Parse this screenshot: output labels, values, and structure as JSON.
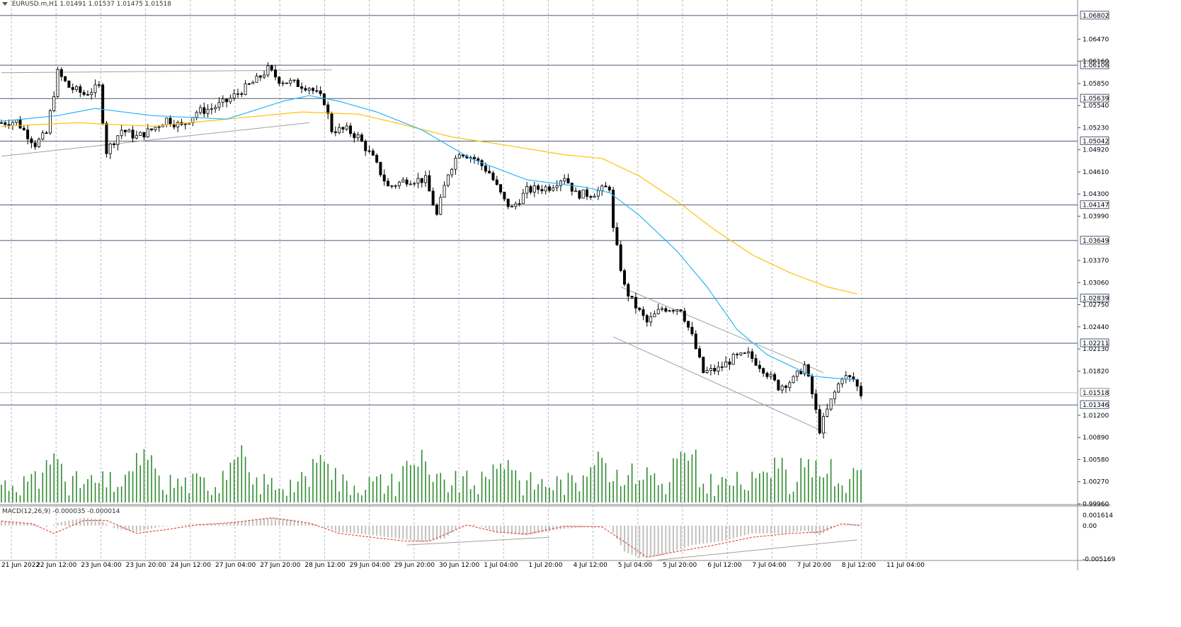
{
  "header": {
    "symbol": "EURUSD.m,H1",
    "open": "1.01491",
    "high": "1.01537",
    "low": "1.01475",
    "close": "1.01518"
  },
  "macd_header": {
    "name": "MACD(12,26,9)",
    "values": "-0.000035 -0.000014"
  },
  "colors": {
    "bull_candle": "#ffffff",
    "bear_candle": "#000000",
    "level_line": "#4a5a78",
    "grid": "#b8b8b8",
    "ma_fast": "#29b6f6",
    "ma_slow": "#ffc107",
    "volume": "#2e8b2e",
    "macd_hist": "#c0c0c0",
    "macd_signal": "#e53935",
    "trendline": "#a0a0a0"
  },
  "chart_data": {
    "type": "candlestick",
    "symbol": "EURUSD.m",
    "timeframe": "H1",
    "price_axis": {
      "ylim": [
        0.9996,
        1.069
      ],
      "tick_labels": [
        "1.06470",
        "1.06160",
        "1.05850",
        "1.05540",
        "1.05230",
        "1.04920",
        "1.04610",
        "1.04300",
        "1.03990",
        "1.03370",
        "1.03060",
        "1.02750",
        "1.02440",
        "1.02130",
        "1.01820",
        "1.01200",
        "1.00890",
        "1.00580",
        "1.00270",
        "0.99960"
      ],
      "levels": [
        {
          "label": "1.06802",
          "value": 1.06802
        },
        {
          "label": "1.06106",
          "value": 1.06106
        },
        {
          "label": "1.05639",
          "value": 1.05639
        },
        {
          "label": "1.05042",
          "value": 1.05042
        },
        {
          "label": "1.04147",
          "value": 1.04147
        },
        {
          "label": "1.03649",
          "value": 1.03649
        },
        {
          "label": "1.02839",
          "value": 1.02839
        },
        {
          "label": "1.02211",
          "value": 1.02211
        },
        {
          "label": "1.01346",
          "value": 1.01346
        }
      ],
      "bid": {
        "label": "1.01518",
        "value": 1.01518
      }
    },
    "time_labels": [
      "21 Jun 2022",
      "22 Jun 12:00",
      "23 Jun 04:00",
      "23 Jun 20:00",
      "24 Jun 12:00",
      "27 Jun 04:00",
      "27 Jun 20:00",
      "28 Jun 12:00",
      "29 Jun 04:00",
      "29 Jun 20:00",
      "30 Jun 12:00",
      "1 Jul 04:00",
      "1 Jul 20:00",
      "4 Jul 12:00",
      "5 Jul 04:00",
      "5 Jul 20:00",
      "6 Jul 12:00",
      "7 Jul 04:00",
      "7 Jul 20:00",
      "8 Jul 12:00",
      "11 Jul 04:00"
    ],
    "bars": 230,
    "close_path": [
      [
        0,
        1.053
      ],
      [
        4,
        1.0532
      ],
      [
        9,
        1.05
      ],
      [
        12,
        1.0515
      ],
      [
        15,
        1.06
      ],
      [
        18,
        1.058
      ],
      [
        22,
        1.057
      ],
      [
        26,
        1.058
      ],
      [
        28,
        1.049
      ],
      [
        32,
        1.052
      ],
      [
        36,
        1.051
      ],
      [
        40,
        1.052
      ],
      [
        44,
        1.0535
      ],
      [
        48,
        1.0525
      ],
      [
        52,
        1.0545
      ],
      [
        56,
        1.055
      ],
      [
        60,
        1.056
      ],
      [
        64,
        1.0575
      ],
      [
        68,
        1.059
      ],
      [
        71,
        1.0605
      ],
      [
        74,
        1.059
      ],
      [
        78,
        1.0585
      ],
      [
        82,
        1.058
      ],
      [
        86,
        1.056
      ],
      [
        88,
        1.052
      ],
      [
        92,
        1.052
      ],
      [
        95,
        1.051
      ],
      [
        99,
        1.048
      ],
      [
        103,
        1.044
      ],
      [
        108,
        1.045
      ],
      [
        113,
        1.045
      ],
      [
        116,
        1.04
      ],
      [
        119,
        1.046
      ],
      [
        122,
        1.049
      ],
      [
        126,
        1.048
      ],
      [
        130,
        1.046
      ],
      [
        134,
        1.042
      ],
      [
        136,
        1.041
      ],
      [
        140,
        1.0435
      ],
      [
        146,
        1.044
      ],
      [
        150,
        1.0455
      ],
      [
        153,
        1.043
      ],
      [
        157,
        1.043
      ],
      [
        162,
        1.044
      ],
      [
        163,
        1.038
      ],
      [
        166,
        1.03
      ],
      [
        168,
        1.028
      ],
      [
        172,
        1.025
      ],
      [
        176,
        1.027
      ],
      [
        181,
        1.027
      ],
      [
        184,
        1.023
      ],
      [
        187,
        1.018
      ],
      [
        191,
        1.0185
      ],
      [
        195,
        1.02
      ],
      [
        199,
        1.0205
      ],
      [
        203,
        1.0185
      ],
      [
        207,
        1.016
      ],
      [
        211,
        1.017
      ],
      [
        214,
        1.019
      ],
      [
        216,
        1.015
      ],
      [
        218,
        1.01
      ],
      [
        221,
        1.014
      ],
      [
        224,
        1.0175
      ],
      [
        227,
        1.017
      ],
      [
        229,
        1.015
      ]
    ],
    "ma_fast": [
      [
        0,
        1.0532
      ],
      [
        15,
        1.054
      ],
      [
        25,
        1.055
      ],
      [
        40,
        1.054
      ],
      [
        60,
        1.0535
      ],
      [
        75,
        1.056
      ],
      [
        82,
        1.0568
      ],
      [
        90,
        1.056
      ],
      [
        100,
        1.0545
      ],
      [
        112,
        1.052
      ],
      [
        125,
        1.048
      ],
      [
        140,
        1.045
      ],
      [
        155,
        1.044
      ],
      [
        162,
        1.0432
      ],
      [
        170,
        1.04
      ],
      [
        180,
        1.035
      ],
      [
        188,
        1.03
      ],
      [
        196,
        1.024
      ],
      [
        204,
        1.0205
      ],
      [
        210,
        1.019
      ],
      [
        216,
        1.0175
      ],
      [
        222,
        1.0172
      ],
      [
        228,
        1.017
      ]
    ],
    "ma_slow": [
      [
        0,
        1.0525
      ],
      [
        20,
        1.053
      ],
      [
        40,
        1.0525
      ],
      [
        60,
        1.0535
      ],
      [
        80,
        1.0545
      ],
      [
        95,
        1.0542
      ],
      [
        105,
        1.053
      ],
      [
        120,
        1.051
      ],
      [
        135,
        1.0498
      ],
      [
        150,
        1.0485
      ],
      [
        160,
        1.048
      ],
      [
        170,
        1.0455
      ],
      [
        180,
        1.042
      ],
      [
        190,
        1.038
      ],
      [
        200,
        1.0345
      ],
      [
        210,
        1.032
      ],
      [
        220,
        1.03
      ],
      [
        228,
        1.029
      ]
    ],
    "trendlines": [
      {
        "from": [
          0,
          1.0483
        ],
        "to": [
          82,
          1.053
        ]
      },
      {
        "from": [
          0,
          1.06
        ],
        "to": [
          88,
          1.0604
        ]
      },
      {
        "from": [
          165,
          1.03
        ],
        "to": [
          219,
          1.018
        ]
      },
      {
        "from": [
          163,
          1.023
        ],
        "to": [
          220,
          1.0095
        ]
      }
    ],
    "volume": {
      "ylim": [
        0,
        100
      ]
    },
    "macd": {
      "title": "MACD(12,26,9)",
      "ylim": [
        -0.005169,
        0.001614
      ],
      "tick_labels": [
        "0.001614",
        "0.00",
        "-0.005169"
      ],
      "hist_path": [
        [
          0,
          0.0007
        ],
        [
          8,
          0.0004
        ],
        [
          12,
          -0.0002
        ],
        [
          16,
          0.0006
        ],
        [
          22,
          0.0012
        ],
        [
          26,
          0.001
        ],
        [
          30,
          -0.0004
        ],
        [
          36,
          -0.001
        ],
        [
          42,
          -0.0002
        ],
        [
          50,
          0.0002
        ],
        [
          60,
          0.0004
        ],
        [
          66,
          0.0009
        ],
        [
          72,
          0.0012
        ],
        [
          78,
          0.0009
        ],
        [
          84,
          0.0002
        ],
        [
          90,
          -0.001
        ],
        [
          98,
          -0.0014
        ],
        [
          106,
          -0.002
        ],
        [
          112,
          -0.0025
        ],
        [
          118,
          -0.002
        ],
        [
          122,
          -0.0002
        ],
        [
          126,
          0.0002
        ],
        [
          132,
          -0.001
        ],
        [
          140,
          -0.0015
        ],
        [
          148,
          -0.0006
        ],
        [
          156,
          -0.0002
        ],
        [
          162,
          -0.0001
        ],
        [
          166,
          -0.004
        ],
        [
          170,
          -0.005
        ],
        [
          176,
          -0.0046
        ],
        [
          184,
          -0.003
        ],
        [
          192,
          -0.0024
        ],
        [
          200,
          -0.0012
        ],
        [
          208,
          -0.0012
        ],
        [
          214,
          -0.0008
        ],
        [
          218,
          -0.0015
        ],
        [
          222,
          -0.0001
        ],
        [
          226,
          0.0003
        ],
        [
          229,
          0.0002
        ]
      ],
      "signal_path": [
        [
          0,
          0.0007
        ],
        [
          8,
          0.0003
        ],
        [
          14,
          -0.0012
        ],
        [
          22,
          0.0008
        ],
        [
          28,
          0.0008
        ],
        [
          36,
          -0.0012
        ],
        [
          44,
          -0.0006
        ],
        [
          52,
          0.0001
        ],
        [
          62,
          0.0005
        ],
        [
          72,
          0.0012
        ],
        [
          82,
          0.0004
        ],
        [
          90,
          -0.0012
        ],
        [
          100,
          -0.0019
        ],
        [
          108,
          -0.0024
        ],
        [
          114,
          -0.0024
        ],
        [
          124,
          0.0001
        ],
        [
          132,
          -0.001
        ],
        [
          140,
          -0.0013
        ],
        [
          150,
          -0.0001
        ],
        [
          160,
          -0.0002
        ],
        [
          166,
          -0.0025
        ],
        [
          172,
          -0.0049
        ],
        [
          180,
          -0.004
        ],
        [
          190,
          -0.003
        ],
        [
          200,
          -0.0018
        ],
        [
          210,
          -0.0012
        ],
        [
          218,
          -0.001
        ],
        [
          224,
          0.0003
        ],
        [
          229,
          0.0
        ]
      ],
      "trendlines": [
        {
          "from": [
            108,
            -0.003
          ],
          "to": [
            146,
            -0.0018
          ]
        },
        {
          "from": [
            172,
            -0.0055
          ],
          "to": [
            228,
            -0.0022
          ]
        }
      ]
    }
  }
}
